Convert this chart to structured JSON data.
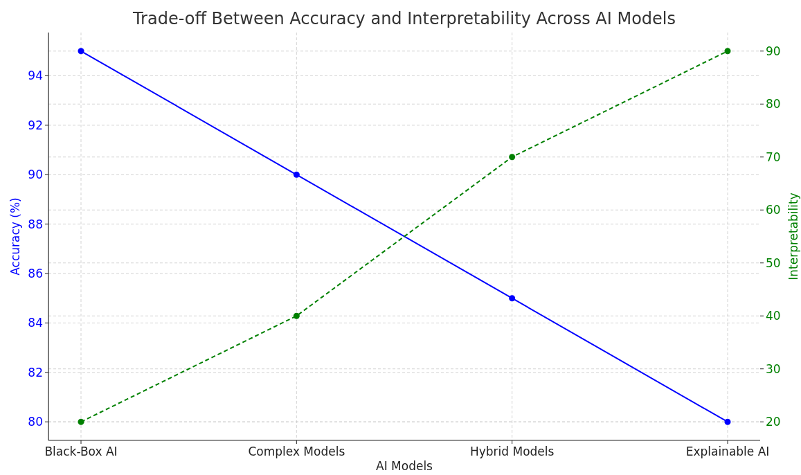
{
  "chart_data": {
    "type": "line",
    "title": "Trade-off Between Accuracy and Interpretability Across AI Models",
    "xlabel": "AI Models",
    "ylabel": "Accuracy (%)",
    "y2label": "Interpretability",
    "categories": [
      "Black-Box AI",
      "Complex Models",
      "Hybrid Models",
      "Explainable AI"
    ],
    "series": [
      {
        "color": "#0000ff",
        "values": [
          95,
          90,
          85,
          80
        ],
        "line_style": "solid"
      },
      {
        "color": "#008000",
        "values": [
          20,
          40,
          70,
          90
        ],
        "axis": "y2",
        "line_style": "dashed"
      }
    ],
    "ylim": [
      79.25,
      95.75
    ],
    "yticks": [
      80,
      82,
      84,
      86,
      88,
      90,
      92,
      94
    ],
    "y2lim": [
      16.5,
      93.5
    ],
    "y2ticks": [
      20,
      30,
      40,
      50,
      60,
      70,
      80,
      90
    ],
    "grid": true,
    "marker": "circle"
  }
}
